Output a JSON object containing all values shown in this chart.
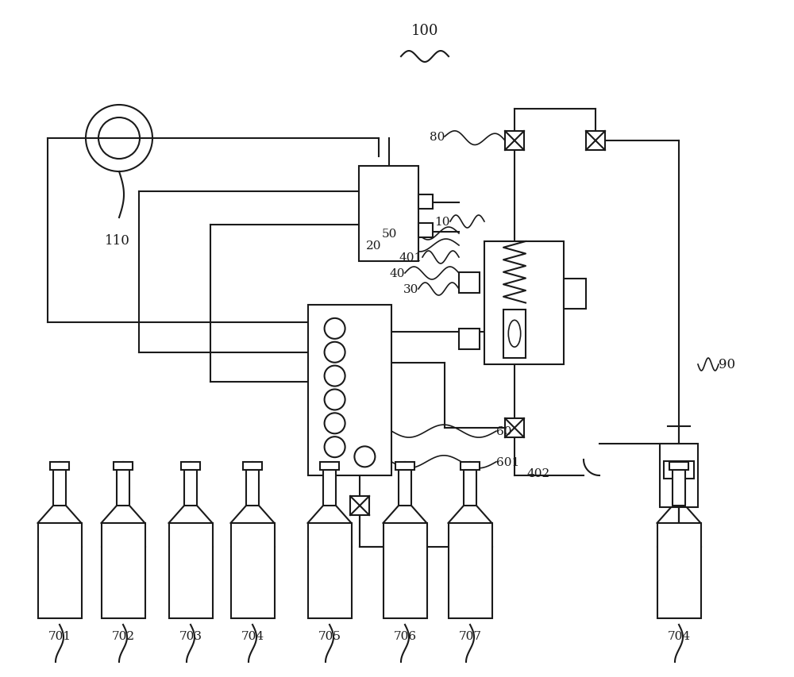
{
  "bg_color": "#ffffff",
  "line_color": "#1a1a1a",
  "lw": 1.5,
  "fig_w": 10.0,
  "fig_h": 8.54,
  "dpi": 100
}
